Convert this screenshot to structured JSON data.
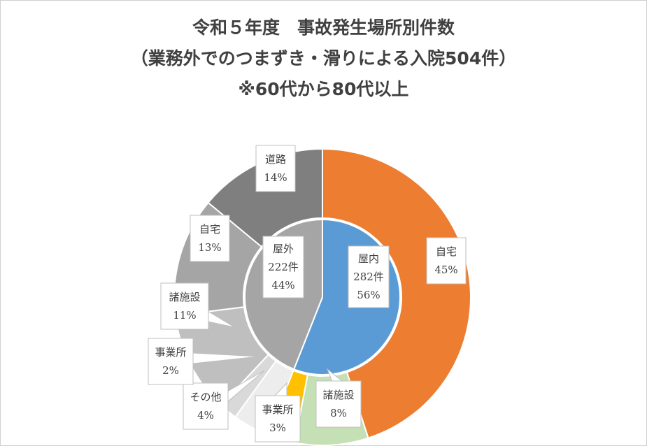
{
  "title_lines": [
    "令和５年度　事故発生場所別件数",
    "（業務外でのつまずき・滑りによる入院504件）",
    "※60代から80代以上"
  ],
  "chart_data": {
    "type": "pie",
    "subtype": "sunburst-doughnut",
    "title": "令和５年度　事故発生場所別件数（業務外でのつまずき・滑りによる入院504件）※60代から80代以上",
    "inner": [
      {
        "name": "屋内",
        "count_label": "282件",
        "count": 282,
        "pct_label": "56%",
        "pct": 56,
        "color": "#5b9bd5"
      },
      {
        "name": "屋外",
        "count_label": "222件",
        "count": 222,
        "pct_label": "44%",
        "pct": 44,
        "color": "#a5a5a5"
      }
    ],
    "outer": [
      {
        "name": "自宅",
        "pct_label": "45%",
        "pct": 45,
        "parent": "屋内",
        "color": "#ed7d31"
      },
      {
        "name": "諸施設",
        "pct_label": "8%",
        "pct": 8,
        "parent": "屋内",
        "color": "#c5e0b4"
      },
      {
        "name": "事業所",
        "pct_label": "3%",
        "pct": 3,
        "parent": "屋内",
        "color": "#ffc000"
      },
      {
        "name": "その他",
        "pct_label": "4%",
        "pct": 4,
        "parent": "屋外",
        "color": "#ededed"
      },
      {
        "name": "事業所",
        "pct_label": "2%",
        "pct": 2,
        "parent": "屋外",
        "color": "#d9d9d9"
      },
      {
        "name": "諸施設",
        "pct_label": "11%",
        "pct": 11,
        "parent": "屋外",
        "color": "#bfbfbf"
      },
      {
        "name": "自宅",
        "pct_label": "13%",
        "pct": 13,
        "parent": "屋外",
        "color": "#a5a5a5"
      },
      {
        "name": "道路",
        "pct_label": "14%",
        "pct": 14,
        "parent": "屋外",
        "color": "#7f7f7f"
      }
    ]
  }
}
